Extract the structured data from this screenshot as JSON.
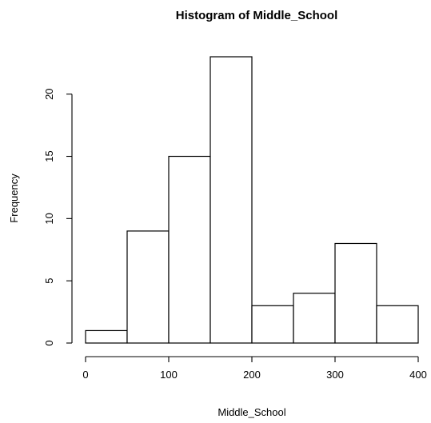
{
  "chart_data": {
    "type": "bar",
    "title": "Histogram of Middle_School",
    "xlabel": "Middle_School",
    "ylabel": "Frequency",
    "bins": [
      {
        "start": 0,
        "end": 50,
        "count": 1
      },
      {
        "start": 50,
        "end": 100,
        "count": 9
      },
      {
        "start": 100,
        "end": 150,
        "count": 15
      },
      {
        "start": 150,
        "end": 200,
        "count": 23
      },
      {
        "start": 200,
        "end": 250,
        "count": 3
      },
      {
        "start": 250,
        "end": 300,
        "count": 4
      },
      {
        "start": 300,
        "end": 350,
        "count": 8
      },
      {
        "start": 350,
        "end": 400,
        "count": 3
      }
    ],
    "xlim": [
      0,
      400
    ],
    "ylim": [
      0,
      23
    ],
    "x_ticks": [
      0,
      100,
      200,
      300,
      400
    ],
    "y_ticks": [
      0,
      5,
      10,
      15,
      20
    ],
    "grid": false,
    "colors": {
      "bar_fill": "#ffffff",
      "bar_stroke": "#000000"
    }
  }
}
